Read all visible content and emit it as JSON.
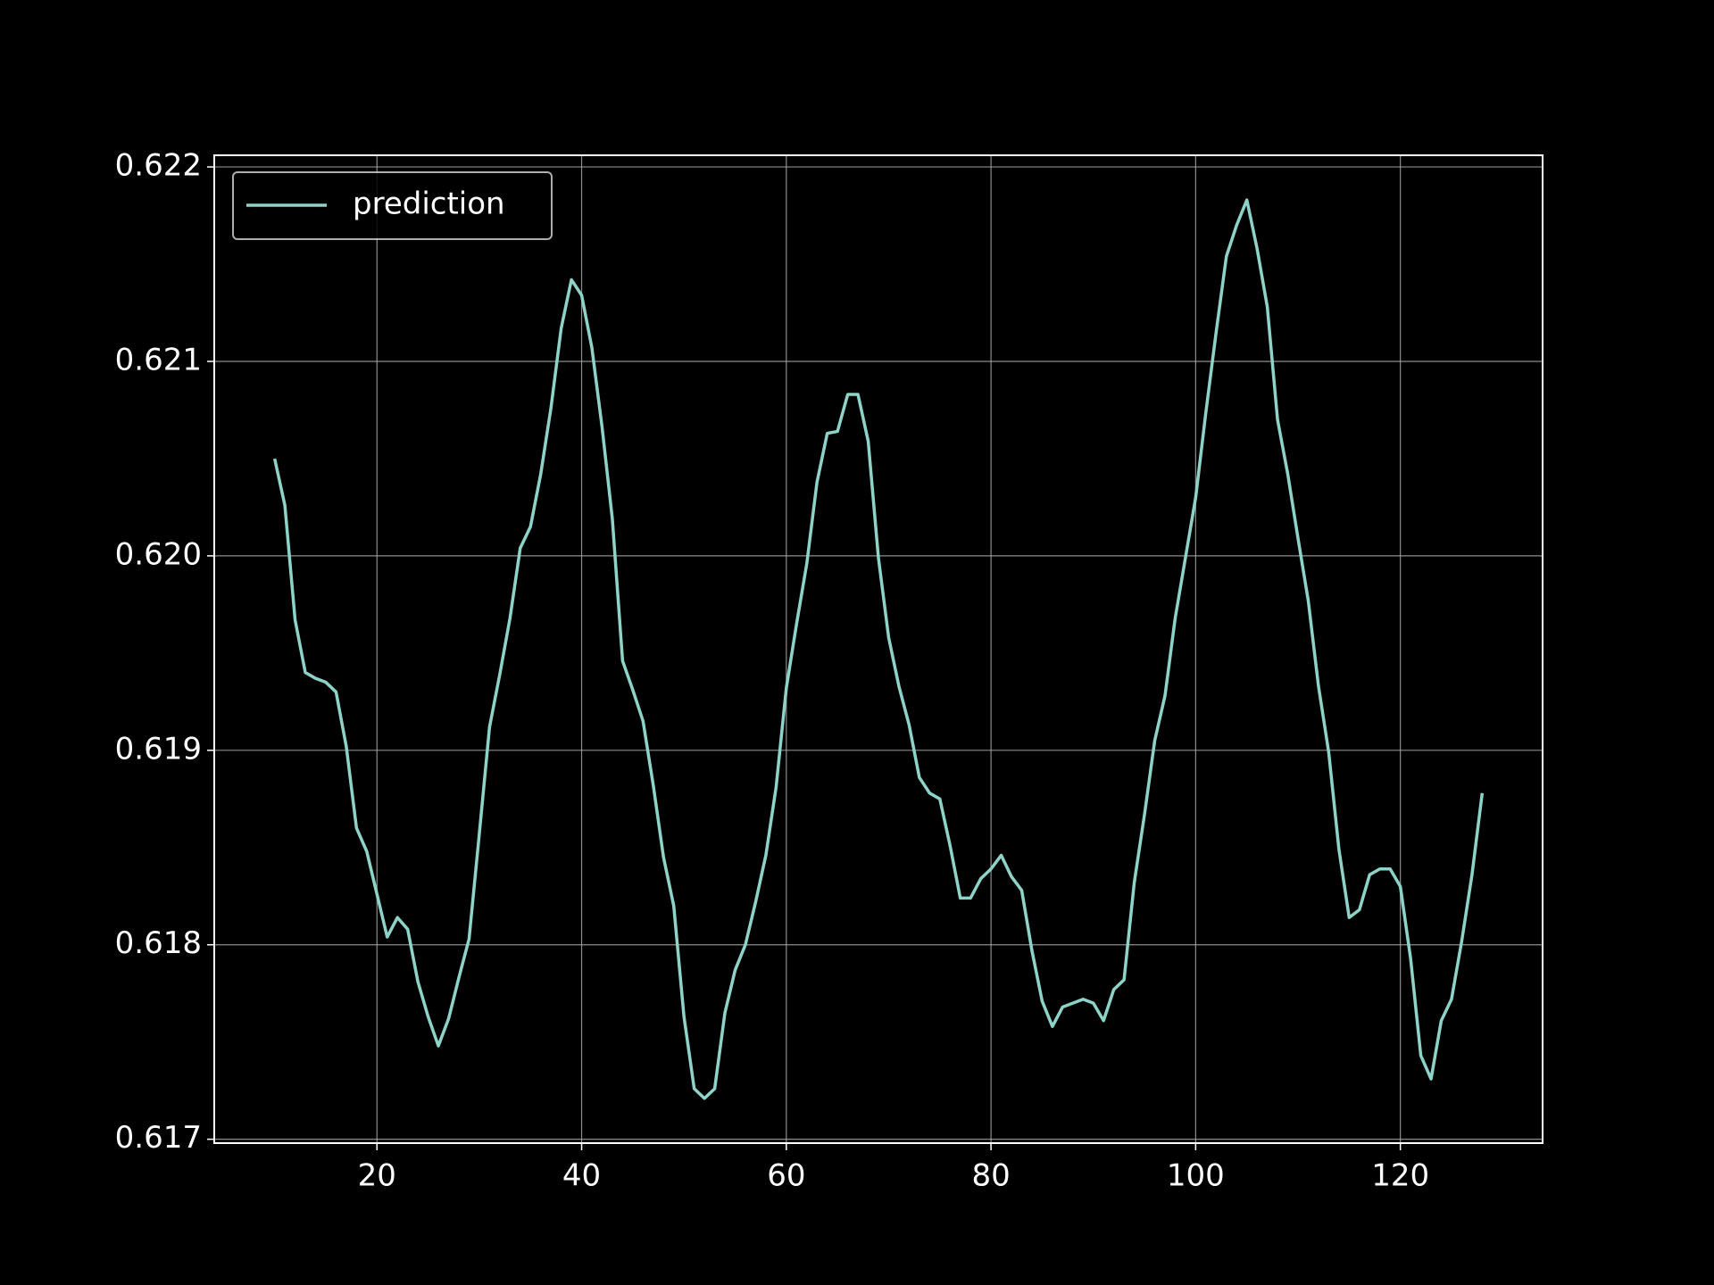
{
  "chart_data": {
    "type": "line",
    "x": [
      10,
      11,
      12,
      13,
      14,
      15,
      16,
      17,
      18,
      19,
      20,
      21,
      22,
      23,
      24,
      25,
      26,
      27,
      28,
      29,
      30,
      31,
      32,
      33,
      34,
      35,
      36,
      37,
      38,
      39,
      40,
      41,
      42,
      43,
      44,
      45,
      46,
      47,
      48,
      49,
      50,
      51,
      52,
      53,
      54,
      55,
      56,
      57,
      58,
      59,
      60,
      61,
      62,
      63,
      64,
      65,
      66,
      67,
      68,
      69,
      70,
      71,
      72,
      73,
      74,
      75,
      76,
      77,
      78,
      79,
      80,
      81,
      82,
      83,
      84,
      85,
      86,
      87,
      88,
      89,
      90,
      91,
      92,
      93,
      94,
      95,
      96,
      97,
      98,
      99,
      100,
      101,
      102,
      103,
      104,
      105,
      106,
      107,
      108,
      109,
      110,
      111,
      112,
      113,
      114,
      115,
      116,
      117,
      118,
      119,
      120,
      121,
      122,
      123,
      124,
      125,
      126,
      127,
      128
    ],
    "series": [
      {
        "name": "prediction",
        "color": "#8dd3c7",
        "values": [
          0.6205,
          0.62026,
          0.61967,
          0.6194,
          0.61937,
          0.61935,
          0.6193,
          0.61902,
          0.6186,
          0.61848,
          0.61826,
          0.61804,
          0.61814,
          0.61808,
          0.61781,
          0.61763,
          0.61748,
          0.61762,
          0.61783,
          0.61803,
          0.61857,
          0.61912,
          0.61939,
          0.61968,
          0.62004,
          0.62015,
          0.62042,
          0.62076,
          0.62117,
          0.62142,
          0.62134,
          0.62107,
          0.62066,
          0.62019,
          0.61946,
          0.61931,
          0.61915,
          0.61882,
          0.61845,
          0.6182,
          0.61763,
          0.61726,
          0.61721,
          0.61726,
          0.61765,
          0.61787,
          0.618,
          0.61822,
          0.61846,
          0.61881,
          0.61932,
          0.61965,
          0.61996,
          0.62038,
          0.62063,
          0.62064,
          0.62083,
          0.62083,
          0.62059,
          0.61999,
          0.61958,
          0.61933,
          0.61913,
          0.61886,
          0.61878,
          0.61875,
          0.61851,
          0.61824,
          0.61824,
          0.61834,
          0.61839,
          0.61846,
          0.61835,
          0.61828,
          0.61797,
          0.61771,
          0.61758,
          0.61768,
          0.6177,
          0.61772,
          0.6177,
          0.61761,
          0.61777,
          0.61782,
          0.61832,
          0.61867,
          0.61905,
          0.61928,
          0.61968,
          0.61999,
          0.6203,
          0.62074,
          0.62115,
          0.62154,
          0.6217,
          0.62183,
          0.62158,
          0.62128,
          0.6207,
          0.62042,
          0.62009,
          0.61977,
          0.61933,
          0.61899,
          0.61849,
          0.61814,
          0.61818,
          0.61836,
          0.61839,
          0.61839,
          0.6183,
          0.61793,
          0.61743,
          0.61731,
          0.61761,
          0.61772,
          0.61802,
          0.61836,
          0.61878
        ]
      }
    ],
    "xlim": [
      4.1,
      133.9
    ],
    "xticks": [
      20,
      40,
      60,
      80,
      100,
      120
    ],
    "ylim": [
      0.61698,
      0.62206
    ],
    "yticks": [
      0.617,
      0.618,
      0.619,
      {
        "value": 0.62,
        "label": "0.620"
      },
      0.621,
      0.622
    ],
    "grid": true,
    "legend": "upper left"
  }
}
